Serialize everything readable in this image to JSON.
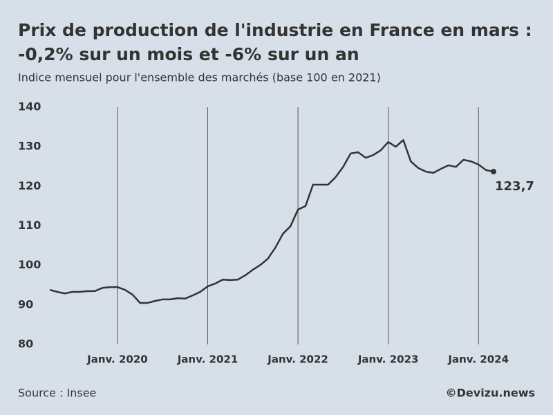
{
  "chart_data": {
    "type": "line",
    "title": [
      "Prix de production de l'industrie en France en mars :",
      "-0,2% sur un mois et -6% sur un an"
    ],
    "subtitle": "Indice mensuel pour l'ensemble des marchés (base 100 en 2021)",
    "source": "Source : Insee",
    "credit": "©Devizu.news",
    "x": [
      "2019-04",
      "2019-05",
      "2019-06",
      "2019-07",
      "2019-08",
      "2019-09",
      "2019-10",
      "2019-11",
      "2019-12",
      "2020-01",
      "2020-02",
      "2020-03",
      "2020-04",
      "2020-05",
      "2020-06",
      "2020-07",
      "2020-08",
      "2020-09",
      "2020-10",
      "2020-11",
      "2020-12",
      "2021-01",
      "2021-02",
      "2021-03",
      "2021-04",
      "2021-05",
      "2021-06",
      "2021-07",
      "2021-08",
      "2021-09",
      "2021-10",
      "2021-11",
      "2021-12",
      "2022-01",
      "2022-02",
      "2022-03",
      "2022-04",
      "2022-05",
      "2022-06",
      "2022-07",
      "2022-08",
      "2022-09",
      "2022-10",
      "2022-11",
      "2022-12",
      "2023-01",
      "2023-02",
      "2023-03",
      "2023-04",
      "2023-05",
      "2023-06",
      "2023-07",
      "2023-08",
      "2023-09",
      "2023-10",
      "2023-11",
      "2023-12",
      "2024-01",
      "2024-02",
      "2024-03"
    ],
    "series": [
      {
        "color": "#333333",
        "values": [
          93.8,
          93.3,
          92.9,
          93.3,
          93.3,
          93.5,
          93.5,
          94.3,
          94.5,
          94.5,
          93.8,
          92.6,
          90.5,
          90.5,
          91.0,
          91.4,
          91.4,
          91.7,
          91.6,
          92.4,
          93.3,
          94.7,
          95.4,
          96.4,
          96.3,
          96.4,
          97.5,
          98.9,
          100.1,
          101.7,
          104.5,
          108.0,
          109.9,
          114.1,
          115.0,
          120.4,
          120.4,
          120.4,
          122.3,
          124.9,
          128.3,
          128.6,
          127.2,
          127.9,
          129.1,
          131.2,
          130.0,
          131.7,
          126.3,
          124.6,
          123.7,
          123.4,
          124.4,
          125.3,
          124.9,
          126.7,
          126.3,
          125.5,
          124.1,
          123.7
        ],
        "value_labels": [
          null,
          null,
          null,
          null,
          null,
          null,
          null,
          null,
          null,
          null,
          null,
          null,
          null,
          null,
          null,
          null,
          null,
          null,
          null,
          null,
          null,
          null,
          null,
          null,
          null,
          null,
          null,
          null,
          null,
          null,
          null,
          null,
          null,
          null,
          null,
          null,
          null,
          null,
          null,
          null,
          null,
          null,
          null,
          null,
          null,
          null,
          null,
          null,
          null,
          null,
          null,
          null,
          null,
          null,
          null,
          null,
          null,
          null,
          null,
          "123,7"
        ]
      }
    ],
    "xlim": [
      "2019-04",
      "2024-03"
    ],
    "xticks": [
      {
        "value": "2020-01",
        "label": "Janv. 2020"
      },
      {
        "value": "2021-01",
        "label": "Janv. 2021"
      },
      {
        "value": "2022-01",
        "label": "Janv. 2022"
      },
      {
        "value": "2023-01",
        "label": "Janv. 2023"
      },
      {
        "value": "2024-01",
        "label": "Janv. 2024"
      }
    ],
    "ylim": [
      80,
      140
    ],
    "yticks": [
      80,
      90,
      100,
      110,
      120,
      130,
      140
    ],
    "grid": "x"
  }
}
